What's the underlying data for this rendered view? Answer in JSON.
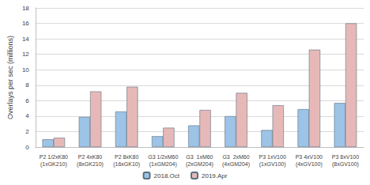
{
  "chart_data": {
    "type": "bar",
    "y_label": "Overlays per sec (millions)",
    "categories": [
      "P2 1/2xK80\n(1xGK210)",
      "P2 4xK80\n(8xGK210)",
      "P2 8xK80\n(16xGK10)",
      "G3 1/2xM60\n(1xGM204)",
      "G3  1xM60\n(2xGM204)",
      "G3  2xM60\n(4xGM204)",
      "P3 1xV100\n(1xGV100)",
      "P3 4xV100\n(4xGV100)",
      "P3 8xV100\n(8xGV100)"
    ],
    "series": [
      {
        "name": "2018.Oct",
        "color": "#9dc3e6",
        "values": [
          1.0,
          3.9,
          4.6,
          1.4,
          2.8,
          4.0,
          2.2,
          4.9,
          5.7
        ]
      },
      {
        "name": "2019.Apr",
        "color": "#e6b9b8",
        "values": [
          1.2,
          7.2,
          7.8,
          2.5,
          4.8,
          7.0,
          5.4,
          12.6,
          16.0
        ]
      }
    ],
    "ylim": [
      0,
      18
    ],
    "yticks": [
      0,
      2,
      4,
      6,
      8,
      10,
      12,
      14,
      16,
      18
    ],
    "grid": true,
    "legend": "bottom"
  }
}
